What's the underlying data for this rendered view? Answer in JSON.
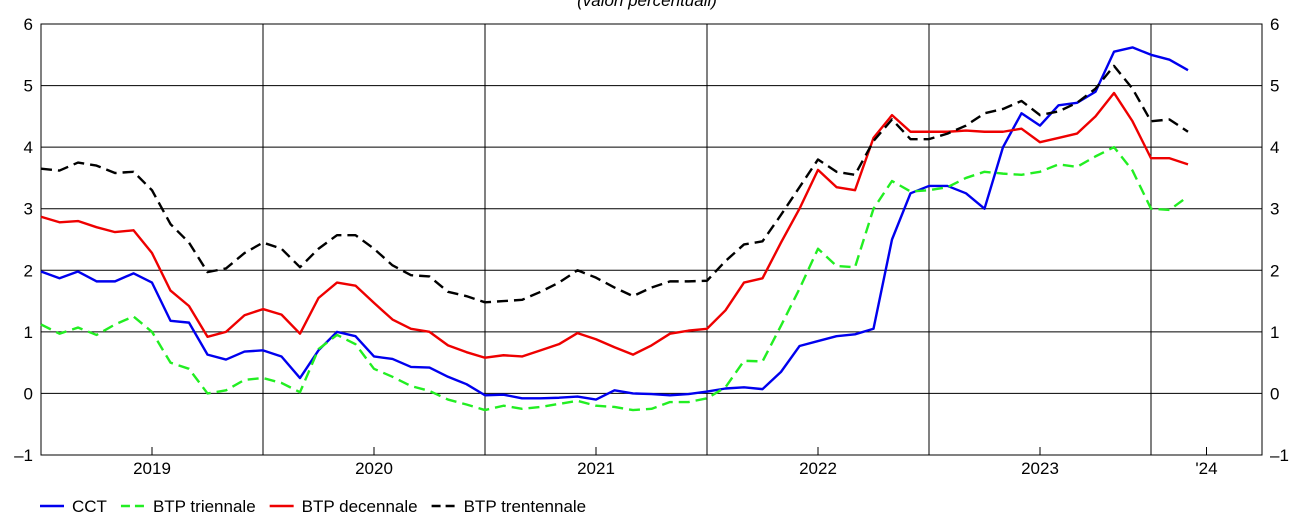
{
  "chart_data": {
    "type": "line",
    "subtitle": "(valori percentuali)",
    "x": [
      0,
      1,
      2,
      3,
      4,
      5,
      6,
      7,
      8,
      9,
      10,
      11,
      12,
      13,
      14,
      15,
      16,
      17,
      18,
      19,
      20,
      21,
      22,
      23,
      24,
      25,
      26,
      27,
      28,
      29,
      30,
      31,
      32,
      33,
      34,
      35,
      36,
      37,
      38,
      39,
      40,
      41,
      42,
      43,
      44,
      45,
      46,
      47,
      48,
      49,
      50,
      51,
      52,
      53,
      54,
      55,
      56,
      57,
      58,
      59,
      60,
      61,
      62
    ],
    "xlim": [
      0,
      66
    ],
    "xticks": [
      {
        "value": 6,
        "label": "2019"
      },
      {
        "value": 18,
        "label": "2020"
      },
      {
        "value": 30,
        "label": "2021"
      },
      {
        "value": 42,
        "label": "2022"
      },
      {
        "value": 54,
        "label": "2023"
      },
      {
        "value": 63,
        "label": "'24"
      }
    ],
    "xgrid": [
      12,
      24,
      36,
      48,
      60
    ],
    "ylim": [
      -1,
      6
    ],
    "yticks": [
      {
        "value": -1,
        "label": "–1"
      },
      0,
      1,
      2,
      3,
      4,
      5,
      6
    ],
    "grid": true,
    "legend": "bottom",
    "series": [
      {
        "name": "CCT",
        "color": "#0000ee",
        "dash": false,
        "values": [
          1.98,
          1.87,
          1.98,
          1.82,
          1.82,
          1.95,
          1.8,
          1.18,
          1.15,
          0.63,
          0.55,
          0.68,
          0.7,
          0.6,
          0.25,
          0.7,
          1.0,
          0.93,
          0.6,
          0.56,
          0.43,
          0.42,
          0.27,
          0.15,
          -0.03,
          -0.02,
          -0.08,
          -0.08,
          -0.07,
          -0.05,
          -0.1,
          0.05,
          0.0,
          -0.01,
          -0.03,
          -0.01,
          0.03,
          0.08,
          0.1,
          0.07,
          0.35,
          0.77,
          0.85,
          0.93,
          0.96,
          1.05,
          2.5,
          3.25,
          3.37,
          3.37,
          3.25,
          3.0,
          4.0,
          4.55,
          4.35,
          4.68,
          4.72,
          4.9,
          5.55,
          5.62,
          5.5,
          5.42,
          5.25
        ]
      },
      {
        "name": "BTP triennale",
        "color": "#22ee22",
        "dash": true,
        "values": [
          1.12,
          0.97,
          1.07,
          0.95,
          1.12,
          1.25,
          1.0,
          0.5,
          0.4,
          0.0,
          0.05,
          0.22,
          0.25,
          0.17,
          0.02,
          0.72,
          0.95,
          0.8,
          0.4,
          0.27,
          0.12,
          0.04,
          -0.1,
          -0.18,
          -0.27,
          -0.2,
          -0.25,
          -0.22,
          -0.17,
          -0.12,
          -0.2,
          -0.22,
          -0.27,
          -0.25,
          -0.14,
          -0.14,
          -0.08,
          0.1,
          0.53,
          0.52,
          1.1,
          1.7,
          2.35,
          2.07,
          2.05,
          3.0,
          3.45,
          3.28,
          3.3,
          3.35,
          3.5,
          3.6,
          3.57,
          3.55,
          3.6,
          3.72,
          3.68,
          3.85,
          4.0,
          3.62,
          3.0,
          2.98,
          3.2
        ]
      },
      {
        "name": "BTP decennale",
        "color": "#ee0000",
        "dash": false,
        "values": [
          2.87,
          2.78,
          2.8,
          2.7,
          2.62,
          2.65,
          2.28,
          1.67,
          1.42,
          0.92,
          1.0,
          1.27,
          1.37,
          1.28,
          0.97,
          1.55,
          1.8,
          1.75,
          1.47,
          1.2,
          1.05,
          1.0,
          0.78,
          0.67,
          0.58,
          0.62,
          0.6,
          0.7,
          0.8,
          0.98,
          0.88,
          0.75,
          0.63,
          0.78,
          0.97,
          1.02,
          1.05,
          1.35,
          1.8,
          1.87,
          2.45,
          3.0,
          3.63,
          3.35,
          3.3,
          4.15,
          4.52,
          4.25,
          4.25,
          4.25,
          4.27,
          4.25,
          4.25,
          4.3,
          4.08,
          4.15,
          4.22,
          4.5,
          4.88,
          4.42,
          3.82,
          3.82,
          3.72
        ]
      },
      {
        "name": "BTP trentennale",
        "color": "#000000",
        "dash": true,
        "values": [
          3.65,
          3.62,
          3.75,
          3.7,
          3.58,
          3.6,
          3.3,
          2.75,
          2.45,
          1.97,
          2.03,
          2.28,
          2.45,
          2.35,
          2.05,
          2.35,
          2.57,
          2.57,
          2.35,
          2.08,
          1.92,
          1.9,
          1.65,
          1.58,
          1.48,
          1.5,
          1.52,
          1.65,
          1.8,
          2.0,
          1.88,
          1.72,
          1.58,
          1.72,
          1.82,
          1.82,
          1.83,
          2.15,
          2.42,
          2.47,
          2.9,
          3.35,
          3.8,
          3.6,
          3.55,
          4.1,
          4.45,
          4.13,
          4.13,
          4.22,
          4.35,
          4.55,
          4.62,
          4.75,
          4.52,
          4.58,
          4.72,
          4.95,
          5.32,
          4.95,
          4.42,
          4.45,
          4.25
        ]
      }
    ]
  }
}
